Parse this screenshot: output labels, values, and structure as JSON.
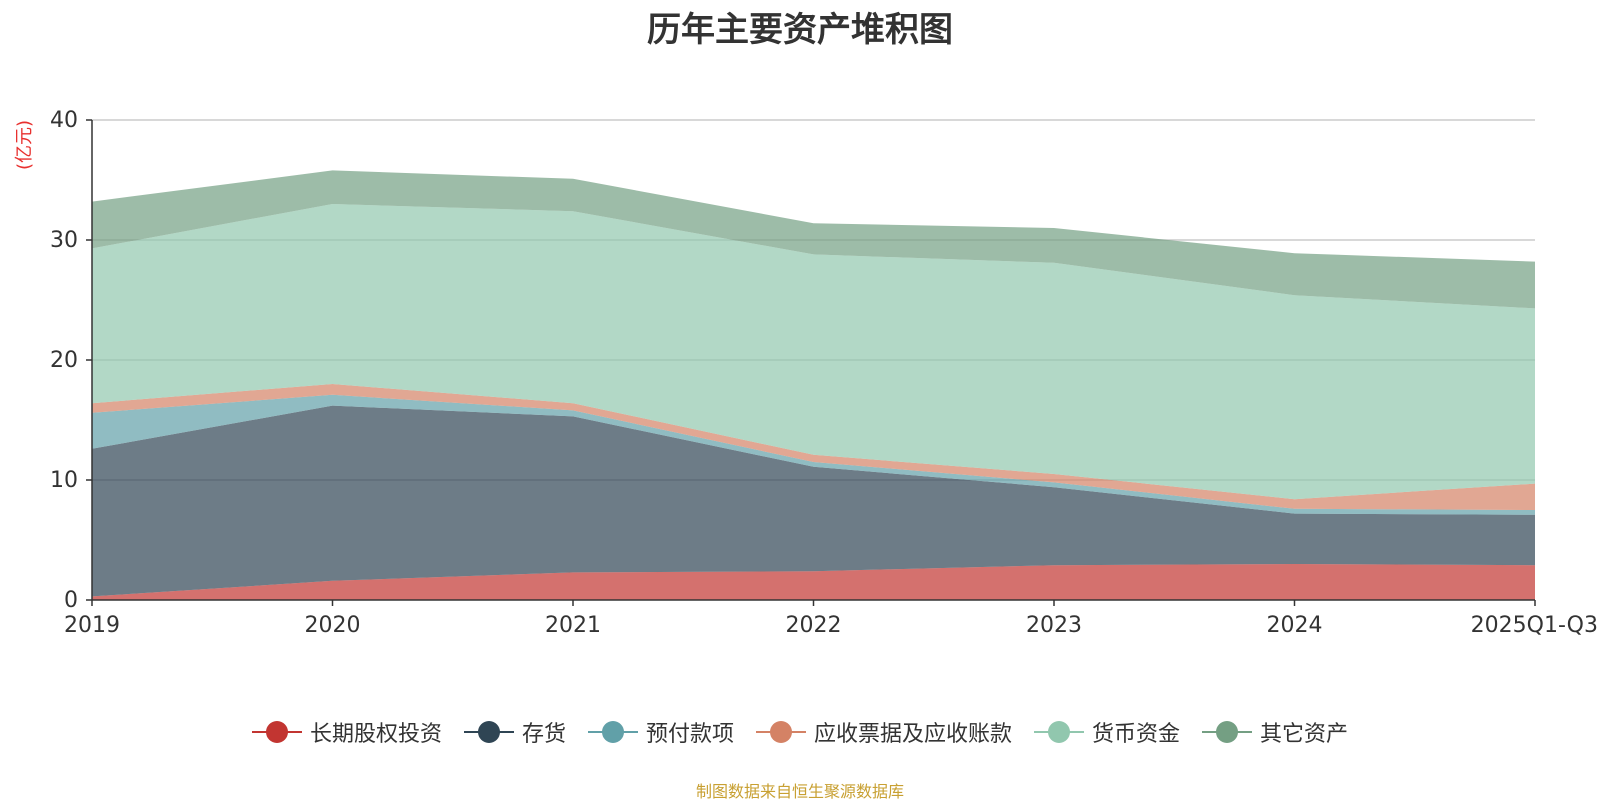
{
  "chart_data": {
    "type": "area",
    "stacked": true,
    "title": "历年主要资产堆积图",
    "ylabel": "(亿元)",
    "xlabel": "",
    "ylim": [
      0,
      40
    ],
    "yticks": [
      0,
      10,
      20,
      30,
      40
    ],
    "grid": true,
    "legend_position": "bottom",
    "categories": [
      "2019",
      "2020",
      "2021",
      "2022",
      "2023",
      "2024",
      "2025Q1-Q3"
    ],
    "series": [
      {
        "name": "长期股权投资",
        "color": "#c23531",
        "values": [
          0.3,
          1.6,
          2.3,
          2.4,
          2.9,
          3.0,
          2.9
        ]
      },
      {
        "name": "存货",
        "color": "#2f4554",
        "values": [
          12.3,
          14.6,
          13.0,
          8.7,
          6.5,
          4.2,
          4.2
        ]
      },
      {
        "name": "预付款项",
        "color": "#61a0a8",
        "values": [
          3.0,
          0.9,
          0.5,
          0.4,
          0.4,
          0.4,
          0.4
        ]
      },
      {
        "name": "应收票据及应收账款",
        "color": "#d48265",
        "values": [
          0.8,
          0.9,
          0.6,
          0.6,
          0.7,
          0.8,
          2.2
        ]
      },
      {
        "name": "货币资金",
        "color": "#91c7ae",
        "values": [
          12.9,
          15.0,
          16.0,
          16.7,
          17.6,
          17.0,
          14.6
        ]
      },
      {
        "name": "其它资产",
        "color": "#749f83",
        "values": [
          3.9,
          2.8,
          2.7,
          2.6,
          2.9,
          3.5,
          3.9
        ]
      }
    ]
  },
  "source_note": "制图数据来自恒生聚源数据库"
}
